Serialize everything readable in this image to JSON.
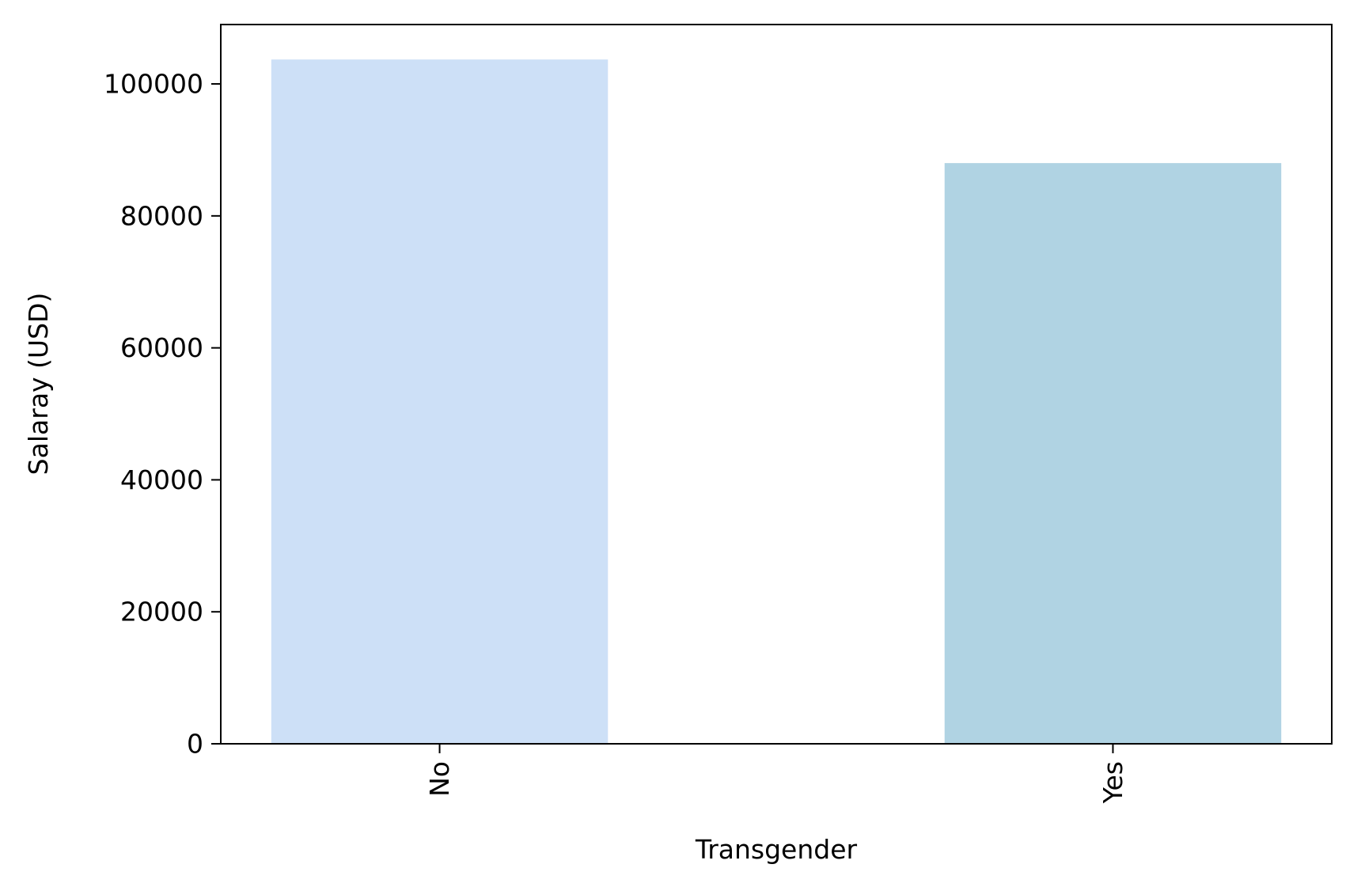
{
  "chart_data": {
    "type": "bar",
    "title": "",
    "xlabel": "Transgender",
    "ylabel": "Salaray (USD)",
    "categories": [
      "No",
      "Yes"
    ],
    "values": [
      103700,
      88000
    ],
    "bar_colors": [
      "#cde0f7",
      "#b0d3e3"
    ],
    "ylim": [
      0,
      109000
    ],
    "yticks": [
      0,
      20000,
      40000,
      60000,
      80000,
      100000
    ],
    "ytick_labels": [
      "0",
      "20000",
      "40000",
      "60000",
      "80000",
      "100000"
    ],
    "grid": false,
    "legend": "none"
  }
}
